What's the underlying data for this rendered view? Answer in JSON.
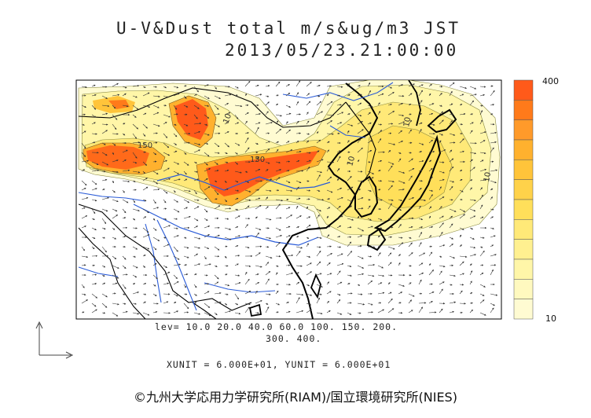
{
  "title_line1": "U-V&Dust total m/s&ug/m3 JST",
  "title_line2": "2013/05/23.21:00:00",
  "levels_line1": "lev= 10.0 20.0 40.0 60.0 100. 150. 200.",
  "levels_line2": "300. 400.",
  "units_line": "XUNIT = 6.000E+01, YUNIT = 6.000E+01",
  "colorbar": {
    "max_label": "400",
    "min_label": "10",
    "colors": [
      "#ff5a1a",
      "#ff7a1a",
      "#ff9a2a",
      "#ffb12e",
      "#ffc43a",
      "#ffd24a",
      "#ffdf5a",
      "#ffe978",
      "#fff090",
      "#fff6a8",
      "#fff9bf",
      "#fffbd2"
    ]
  },
  "map_labels": {
    "c150": "150",
    "c150b": "150",
    "c10a": "10",
    "c10b": "10",
    "c10c": "10",
    "c10d": "10"
  },
  "credit": "©九州大学応用力学研究所(RIAM)/国立環境研究所(NIES)"
}
